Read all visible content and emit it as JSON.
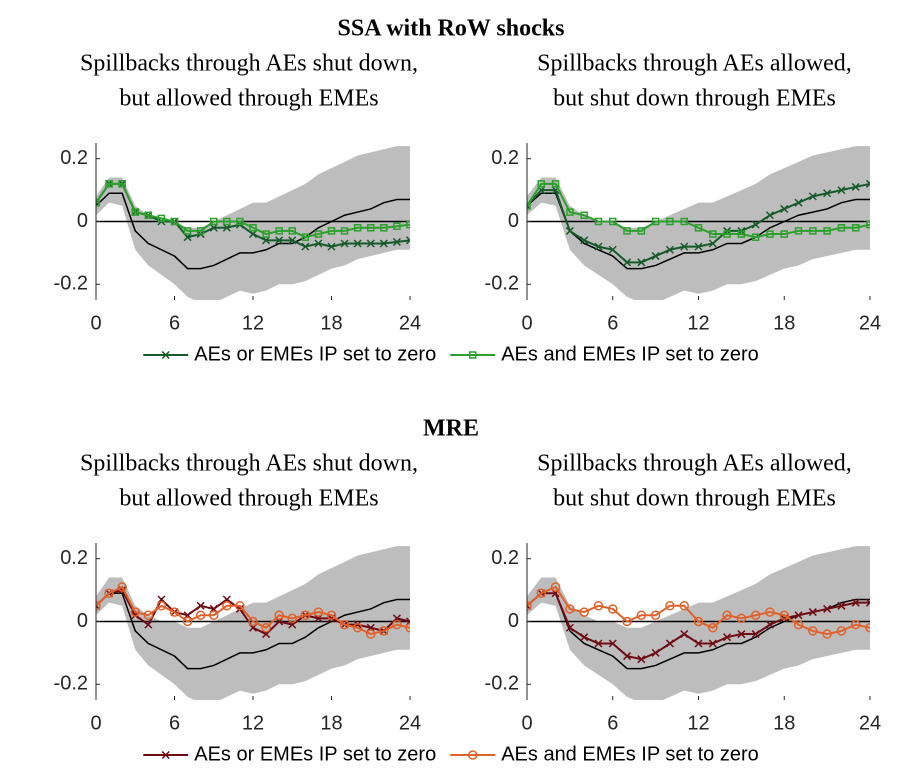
{
  "chart_data": [
    {
      "type": "line",
      "title": "SSA with RoW shocks",
      "subtitle": [
        "Spillbacks through AEs shut down,",
        "but allowed through EMEs"
      ],
      "x": [
        0,
        1,
        2,
        3,
        4,
        5,
        6,
        7,
        8,
        9,
        10,
        11,
        12,
        13,
        14,
        15,
        16,
        17,
        18,
        19,
        20,
        21,
        22,
        23,
        24
      ],
      "xlim": [
        0,
        24
      ],
      "xticks": [
        0,
        6,
        12,
        18,
        24
      ],
      "ylim": [
        -0.25,
        0.25
      ],
      "yticks": [
        -0.2,
        0,
        0.2
      ],
      "band": {
        "color": "#bdbdbd",
        "upper": [
          0.08,
          0.14,
          0.14,
          0.05,
          0.02,
          0.0,
          0.0,
          -0.02,
          -0.02,
          0.0,
          0.02,
          0.04,
          0.06,
          0.06,
          0.08,
          0.1,
          0.12,
          0.15,
          0.17,
          0.19,
          0.21,
          0.22,
          0.23,
          0.24,
          0.24
        ],
        "lower": [
          0.02,
          0.06,
          0.05,
          -0.09,
          -0.14,
          -0.17,
          -0.2,
          -0.24,
          -0.26,
          -0.26,
          -0.24,
          -0.22,
          -0.23,
          -0.22,
          -0.2,
          -0.2,
          -0.19,
          -0.17,
          -0.15,
          -0.14,
          -0.12,
          -0.11,
          -0.1,
          -0.09,
          -0.09
        ]
      },
      "baseline": {
        "color": "#000000",
        "values": [
          0.05,
          0.09,
          0.09,
          -0.03,
          -0.07,
          -0.09,
          -0.11,
          -0.15,
          -0.15,
          -0.14,
          -0.12,
          -0.1,
          -0.1,
          -0.09,
          -0.07,
          -0.07,
          -0.05,
          -0.02,
          0.0,
          0.02,
          0.03,
          0.04,
          0.06,
          0.07,
          0.07
        ]
      },
      "series": [
        {
          "name": "AEs or EMEs IP set to zero",
          "color": "#165a2a",
          "marker": "x",
          "values": [
            0.06,
            0.12,
            0.12,
            0.03,
            0.02,
            0.0,
            0.0,
            -0.05,
            -0.04,
            -0.02,
            -0.02,
            -0.01,
            -0.04,
            -0.06,
            -0.06,
            -0.06,
            -0.08,
            -0.07,
            -0.08,
            -0.07,
            -0.07,
            -0.07,
            -0.07,
            -0.065,
            -0.06
          ]
        },
        {
          "name": "AEs and EMEs IP set to zero",
          "color": "#2ca02c",
          "marker": "square",
          "values": [
            0.06,
            0.12,
            0.12,
            0.03,
            0.02,
            0.01,
            0.0,
            -0.03,
            -0.03,
            0.0,
            0.0,
            0.0,
            -0.02,
            -0.04,
            -0.03,
            -0.03,
            -0.05,
            -0.04,
            -0.03,
            -0.03,
            -0.02,
            -0.02,
            -0.02,
            -0.015,
            -0.01
          ]
        }
      ]
    },
    {
      "type": "line",
      "subtitle": [
        "Spillbacks through AEs allowed,",
        "but shut down through EMEs"
      ],
      "x": [
        0,
        1,
        2,
        3,
        4,
        5,
        6,
        7,
        8,
        9,
        10,
        11,
        12,
        13,
        14,
        15,
        16,
        17,
        18,
        19,
        20,
        21,
        22,
        23,
        24
      ],
      "xlim": [
        0,
        24
      ],
      "xticks": [
        0,
        6,
        12,
        18,
        24
      ],
      "ylim": [
        -0.25,
        0.25
      ],
      "yticks": [
        -0.2,
        0,
        0.2
      ],
      "band": {
        "color": "#bdbdbd",
        "upper": [
          0.08,
          0.14,
          0.14,
          0.05,
          0.02,
          0.0,
          0.0,
          -0.02,
          -0.02,
          0.0,
          0.02,
          0.04,
          0.06,
          0.06,
          0.08,
          0.1,
          0.12,
          0.15,
          0.17,
          0.19,
          0.21,
          0.22,
          0.23,
          0.24,
          0.24
        ],
        "lower": [
          0.02,
          0.06,
          0.05,
          -0.09,
          -0.14,
          -0.17,
          -0.2,
          -0.24,
          -0.26,
          -0.26,
          -0.24,
          -0.22,
          -0.23,
          -0.22,
          -0.2,
          -0.2,
          -0.19,
          -0.17,
          -0.15,
          -0.14,
          -0.12,
          -0.11,
          -0.1,
          -0.09,
          -0.09
        ]
      },
      "baseline": {
        "color": "#000000",
        "values": [
          0.05,
          0.09,
          0.09,
          -0.03,
          -0.07,
          -0.09,
          -0.11,
          -0.15,
          -0.15,
          -0.14,
          -0.12,
          -0.1,
          -0.1,
          -0.09,
          -0.07,
          -0.07,
          -0.05,
          -0.02,
          0.0,
          0.02,
          0.03,
          0.04,
          0.06,
          0.07,
          0.07
        ]
      },
      "series": [
        {
          "color": "#165a2a",
          "marker": "x",
          "values": [
            0.05,
            0.1,
            0.1,
            -0.03,
            -0.06,
            -0.08,
            -0.09,
            -0.13,
            -0.13,
            -0.11,
            -0.09,
            -0.08,
            -0.08,
            -0.07,
            -0.03,
            -0.03,
            -0.01,
            0.02,
            0.04,
            0.06,
            0.08,
            0.09,
            0.1,
            0.11,
            0.12
          ]
        },
        {
          "color": "#2ca02c",
          "marker": "square",
          "values": [
            0.05,
            0.12,
            0.12,
            0.03,
            0.02,
            0.0,
            0.0,
            -0.03,
            -0.03,
            0.0,
            0.0,
            0.0,
            -0.02,
            -0.04,
            -0.04,
            -0.04,
            -0.05,
            -0.04,
            -0.04,
            -0.03,
            -0.03,
            -0.03,
            -0.02,
            -0.02,
            -0.01
          ]
        }
      ]
    },
    {
      "type": "line",
      "title": "MRE",
      "subtitle": [
        "Spillbacks through AEs shut down,",
        "but allowed through EMEs"
      ],
      "x": [
        0,
        1,
        2,
        3,
        4,
        5,
        6,
        7,
        8,
        9,
        10,
        11,
        12,
        13,
        14,
        15,
        16,
        17,
        18,
        19,
        20,
        21,
        22,
        23,
        24
      ],
      "xlim": [
        0,
        24
      ],
      "xticks": [
        0,
        6,
        12,
        18,
        24
      ],
      "ylim": [
        -0.25,
        0.25
      ],
      "yticks": [
        -0.2,
        0,
        0.2
      ],
      "band": {
        "color": "#bdbdbd",
        "upper": [
          0.08,
          0.14,
          0.14,
          0.05,
          0.02,
          0.0,
          0.0,
          -0.02,
          -0.02,
          0.0,
          0.02,
          0.04,
          0.06,
          0.06,
          0.08,
          0.1,
          0.12,
          0.15,
          0.17,
          0.19,
          0.21,
          0.22,
          0.23,
          0.24,
          0.24
        ],
        "lower": [
          0.02,
          0.06,
          0.05,
          -0.09,
          -0.14,
          -0.17,
          -0.2,
          -0.24,
          -0.26,
          -0.26,
          -0.24,
          -0.22,
          -0.23,
          -0.22,
          -0.2,
          -0.2,
          -0.19,
          -0.17,
          -0.15,
          -0.14,
          -0.12,
          -0.11,
          -0.1,
          -0.09,
          -0.09
        ]
      },
      "baseline": {
        "color": "#000000",
        "values": [
          0.05,
          0.09,
          0.09,
          -0.03,
          -0.07,
          -0.09,
          -0.11,
          -0.15,
          -0.15,
          -0.14,
          -0.12,
          -0.1,
          -0.1,
          -0.09,
          -0.07,
          -0.07,
          -0.05,
          -0.02,
          0.0,
          0.02,
          0.03,
          0.04,
          0.06,
          0.07,
          0.07
        ]
      },
      "series": [
        {
          "name": "AEs or EMEs IP set to zero",
          "color": "#6e0b14",
          "marker": "x",
          "values": [
            0.05,
            0.09,
            0.1,
            0.02,
            -0.01,
            0.07,
            0.03,
            0.02,
            0.05,
            0.04,
            0.07,
            0.04,
            -0.02,
            -0.04,
            0.0,
            -0.01,
            0.02,
            0.01,
            0.01,
            -0.01,
            -0.01,
            -0.02,
            -0.03,
            0.01,
            0.0
          ]
        },
        {
          "name": "AEs and EMEs IP set to zero",
          "color": "#e0622a",
          "marker": "circle",
          "values": [
            0.05,
            0.09,
            0.11,
            0.03,
            0.02,
            0.05,
            0.03,
            0.0,
            0.02,
            0.02,
            0.05,
            0.05,
            0.0,
            -0.02,
            0.02,
            0.01,
            0.02,
            0.03,
            0.02,
            -0.01,
            -0.02,
            -0.04,
            -0.03,
            -0.01,
            -0.02
          ]
        }
      ]
    },
    {
      "type": "line",
      "subtitle": [
        "Spillbacks through AEs allowed,",
        "but shut down through EMEs"
      ],
      "x": [
        0,
        1,
        2,
        3,
        4,
        5,
        6,
        7,
        8,
        9,
        10,
        11,
        12,
        13,
        14,
        15,
        16,
        17,
        18,
        19,
        20,
        21,
        22,
        23,
        24
      ],
      "xlim": [
        0,
        24
      ],
      "xticks": [
        0,
        6,
        12,
        18,
        24
      ],
      "ylim": [
        -0.25,
        0.25
      ],
      "yticks": [
        -0.2,
        0,
        0.2
      ],
      "band": {
        "color": "#bdbdbd",
        "upper": [
          0.08,
          0.14,
          0.14,
          0.05,
          0.02,
          0.0,
          0.0,
          -0.02,
          -0.02,
          0.0,
          0.02,
          0.04,
          0.06,
          0.06,
          0.08,
          0.1,
          0.12,
          0.15,
          0.17,
          0.19,
          0.21,
          0.22,
          0.23,
          0.24,
          0.24
        ],
        "lower": [
          0.02,
          0.06,
          0.05,
          -0.09,
          -0.14,
          -0.17,
          -0.2,
          -0.24,
          -0.26,
          -0.26,
          -0.24,
          -0.22,
          -0.23,
          -0.22,
          -0.2,
          -0.2,
          -0.19,
          -0.17,
          -0.15,
          -0.14,
          -0.12,
          -0.11,
          -0.1,
          -0.09,
          -0.09
        ]
      },
      "baseline": {
        "color": "#000000",
        "values": [
          0.05,
          0.09,
          0.09,
          -0.03,
          -0.07,
          -0.09,
          -0.11,
          -0.15,
          -0.15,
          -0.14,
          -0.12,
          -0.1,
          -0.1,
          -0.09,
          -0.07,
          -0.07,
          -0.05,
          -0.02,
          0.0,
          0.02,
          0.03,
          0.04,
          0.06,
          0.07,
          0.07
        ]
      },
      "series": [
        {
          "color": "#6e0b14",
          "marker": "x",
          "values": [
            0.05,
            0.09,
            0.09,
            -0.02,
            -0.05,
            -0.07,
            -0.07,
            -0.11,
            -0.12,
            -0.1,
            -0.07,
            -0.04,
            -0.07,
            -0.07,
            -0.05,
            -0.04,
            -0.04,
            -0.01,
            0.01,
            0.02,
            0.03,
            0.04,
            0.05,
            0.06,
            0.06
          ]
        },
        {
          "color": "#e0622a",
          "marker": "circle",
          "values": [
            0.05,
            0.09,
            0.11,
            0.04,
            0.03,
            0.05,
            0.04,
            0.0,
            0.02,
            0.02,
            0.05,
            0.05,
            0.0,
            -0.02,
            0.02,
            0.01,
            0.02,
            0.03,
            0.02,
            -0.01,
            -0.03,
            -0.04,
            -0.03,
            -0.01,
            -0.02
          ]
        }
      ]
    }
  ]
}
